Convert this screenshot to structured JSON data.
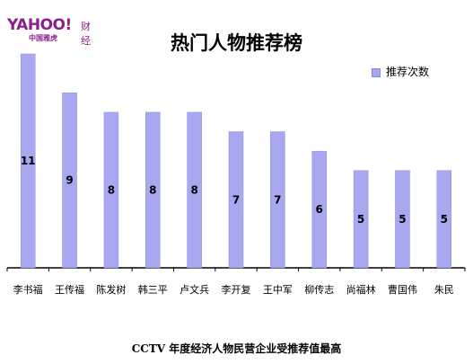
{
  "logo": {
    "brand": "YAHOO!",
    "sub": "中国雅虎",
    "section": "财经"
  },
  "footer": "CCTV 年度经济人物民营企业受推荐值最高",
  "colors": {
    "bar_fill": "#a8a8f0",
    "bar_edge": "#8c8ce0",
    "axis": "#000000"
  },
  "chart_data": {
    "type": "bar",
    "title": "热门人物推荐榜",
    "xlabel": "",
    "ylabel": "",
    "ylim": [
      0,
      11
    ],
    "grid": false,
    "legend": "top-right",
    "series": [
      {
        "name": "推荐次数",
        "values": [
          11,
          9,
          8,
          8,
          8,
          7,
          7,
          6,
          5,
          5,
          5
        ]
      }
    ],
    "categories": [
      "李书福",
      "王传福",
      "陈发树",
      "韩三平",
      "卢文兵",
      "李开复",
      "王中军",
      "柳传志",
      "尚福林",
      "曹国伟",
      "朱民"
    ]
  }
}
